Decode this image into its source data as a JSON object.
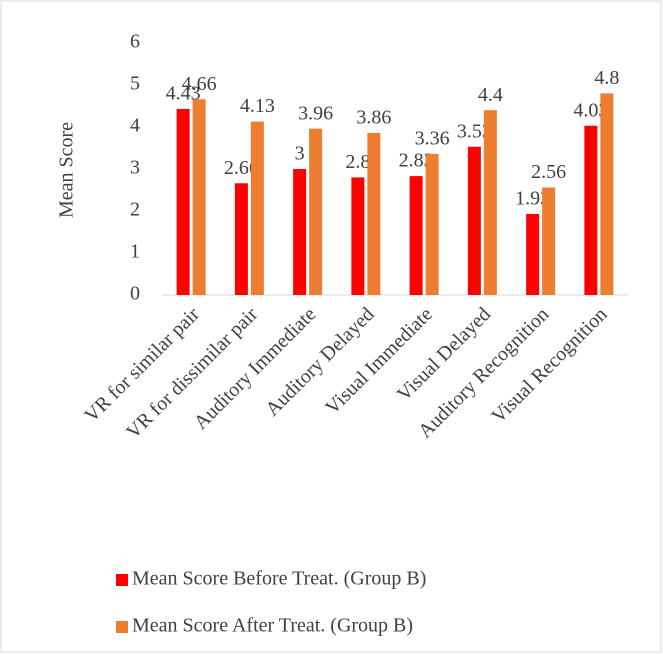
{
  "chart_data": {
    "type": "bar",
    "y_label": "Mean Score",
    "categories": [
      "VR for similar pair",
      "VR for dissimilar pair",
      "Auditory Immediate",
      "Auditory Delayed",
      "Visual Immediate",
      "Visual Delayed",
      "Auditory Recognition",
      "Visual Recognition"
    ],
    "series": [
      {
        "name": "Mean Score Before Treat. (Group B)",
        "color": "#ff0000",
        "values": [
          4.43,
          2.66,
          3,
          2.8,
          2.83,
          3.53,
          1.93,
          4.03
        ]
      },
      {
        "name": "Mean Score After Treat. (Group B)",
        "color": "#ed7d31",
        "values": [
          4.66,
          4.13,
          3.96,
          3.86,
          3.36,
          4.4,
          2.56,
          4.8
        ]
      }
    ],
    "ylim": [
      0,
      6
    ],
    "yticks": [
      0,
      1,
      2,
      3,
      4,
      5,
      6
    ],
    "grid": false,
    "legend": "bottom"
  }
}
